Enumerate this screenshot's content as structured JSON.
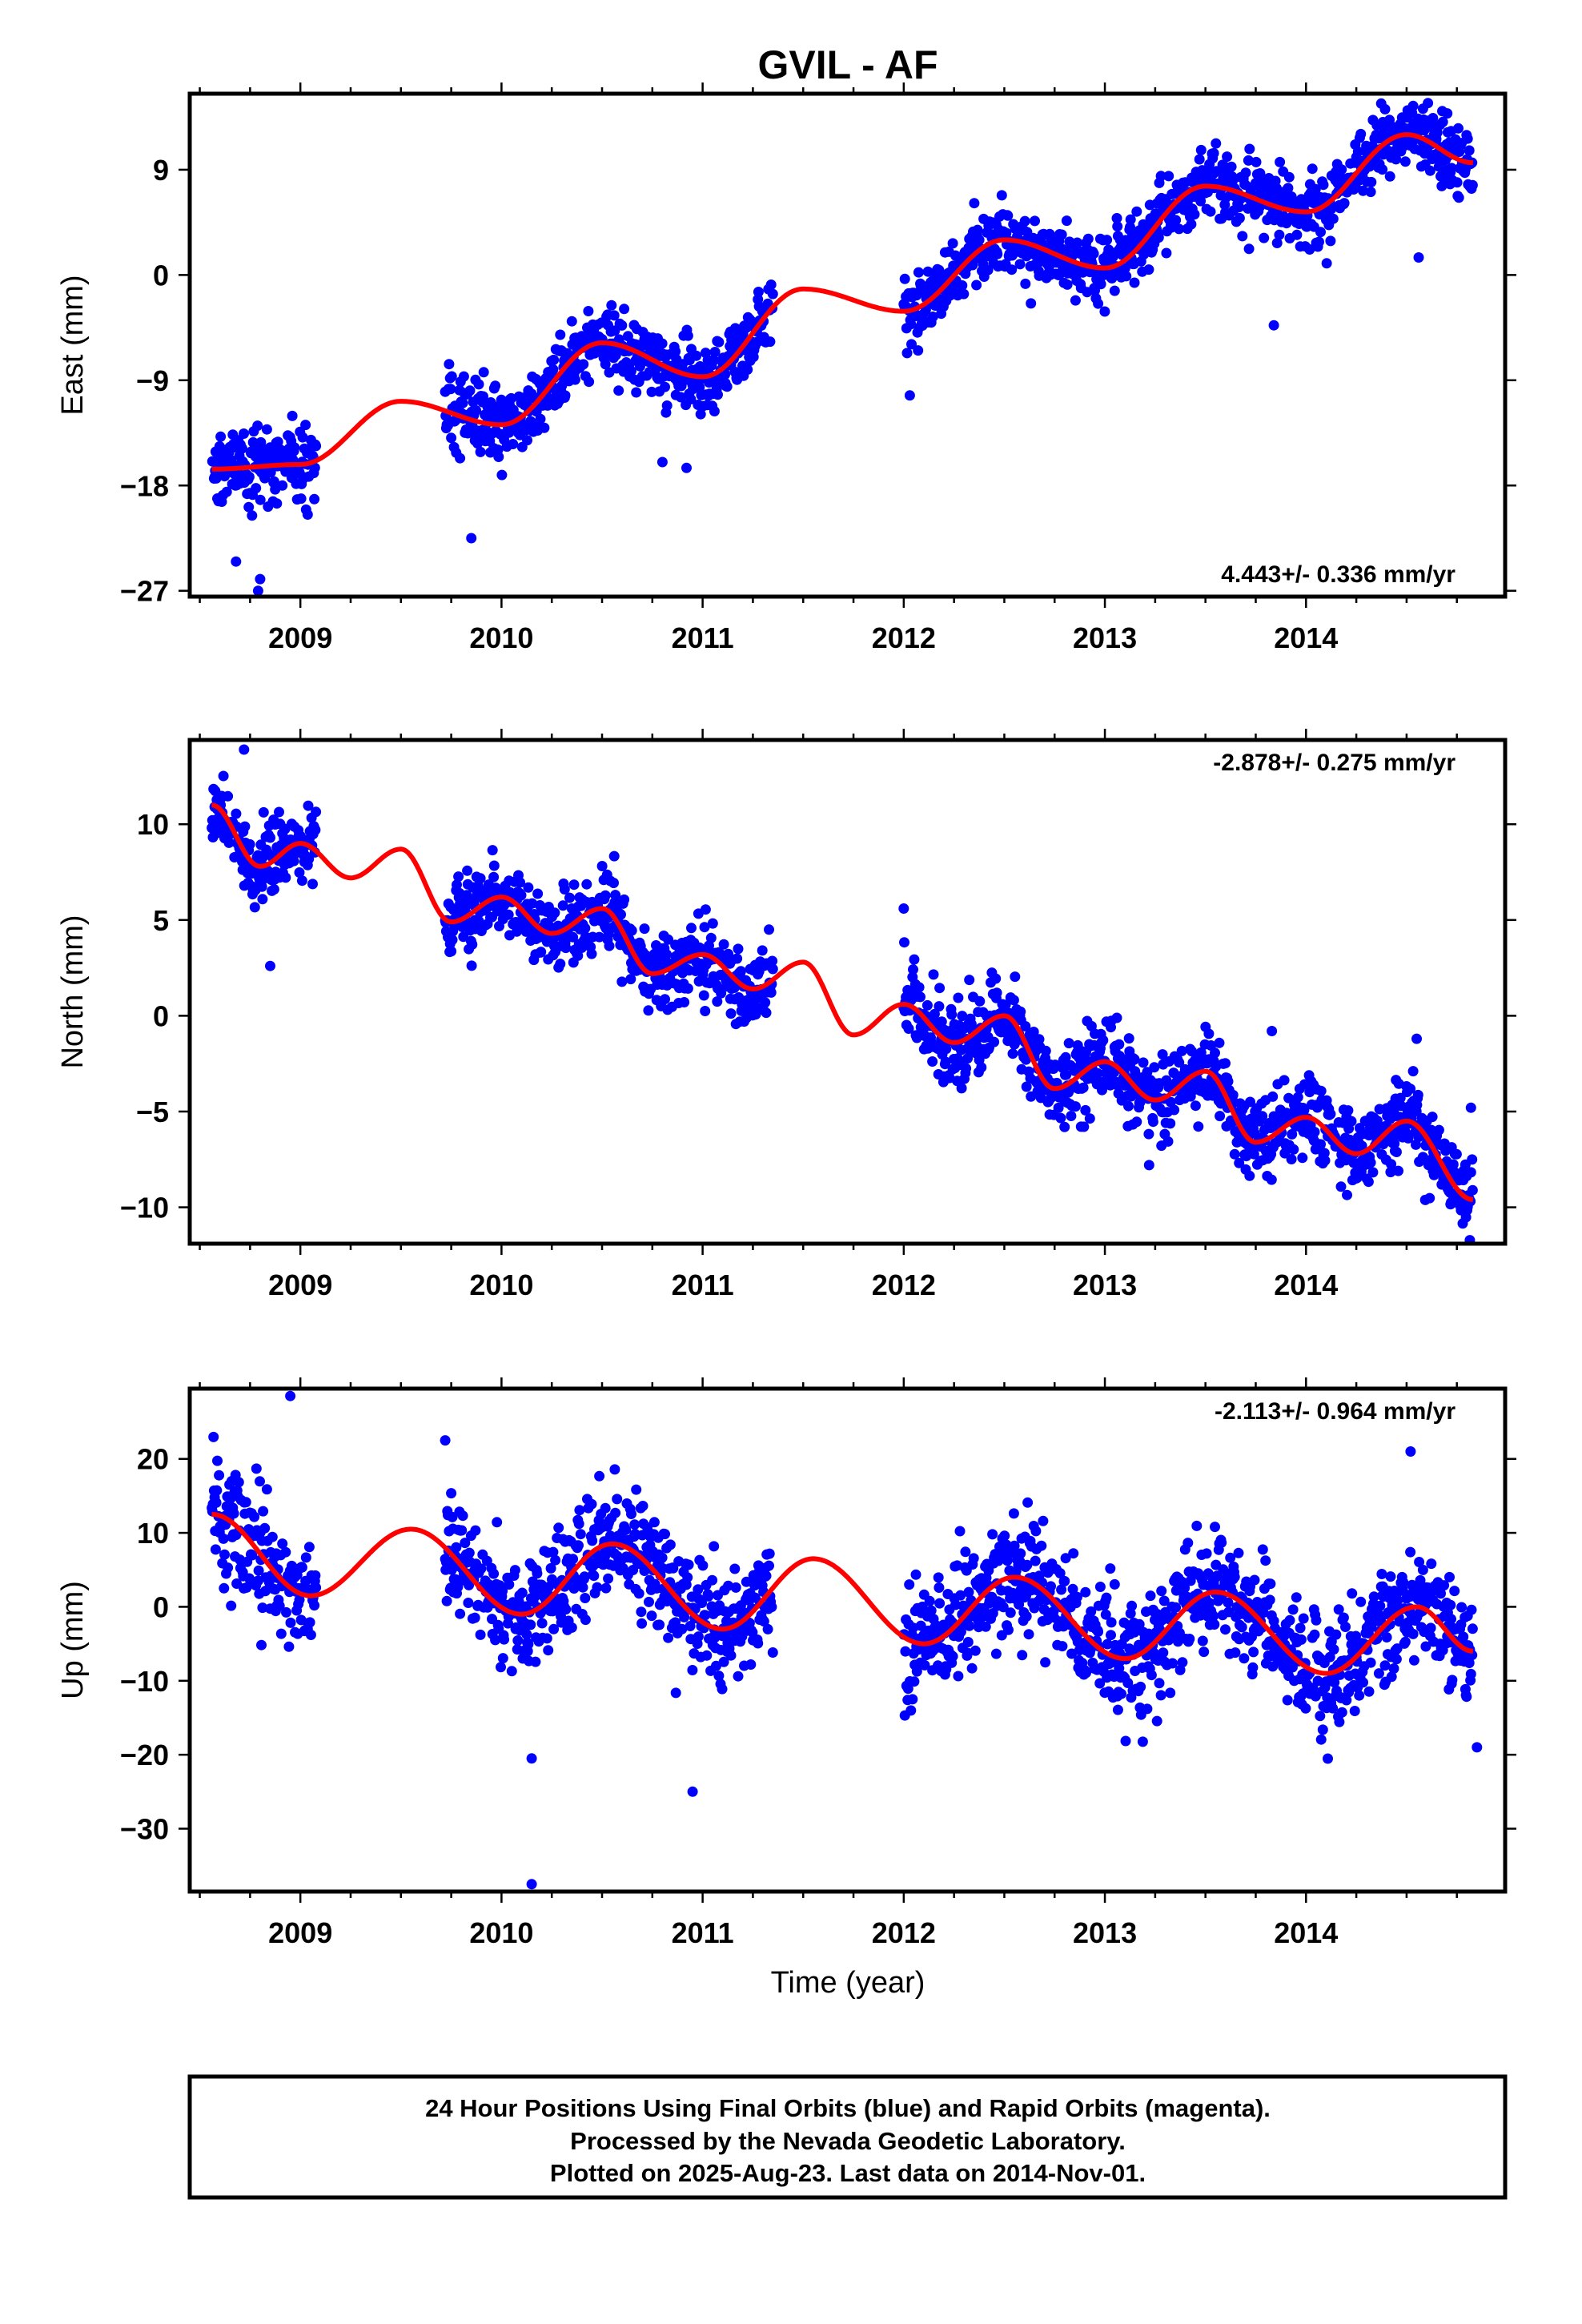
{
  "title": "GVIL - AF",
  "xlabel": "Time (year)",
  "footnote": {
    "line1": "24 Hour Positions Using Final Orbits (blue) and Rapid Orbits (magenta).",
    "line2": "Processed by the Nevada Geodetic Laboratory.",
    "line3": "Plotted on 2025-Aug-23. Last data on 2014-Nov-01."
  },
  "colors": {
    "points": "#0000ff",
    "model": "#ff0000",
    "frame": "#000000"
  },
  "chart_data": [
    {
      "type": "scatter",
      "panel": "east",
      "ylabel": "East (mm)",
      "rate_label": "4.443+/- 0.336 mm/yr",
      "xlim": [
        2008.45,
        2014.99
      ],
      "ylim": [
        -27.5,
        15.5
      ],
      "x_ticks": [
        2009,
        2010,
        2011,
        2012,
        2013,
        2014
      ],
      "x_tick_labels": [
        "2009",
        "2010",
        "2011",
        "2012",
        "2013",
        "2014"
      ],
      "y_ticks": [
        -27,
        -18,
        -9,
        0,
        9
      ],
      "y_tick_labels": [
        "−27",
        "−18",
        "−9",
        "0",
        "9"
      ],
      "grid": false,
      "data_segments": [
        [
          2008.56,
          2009.08
        ],
        [
          2009.72,
          2011.35
        ],
        [
          2012.0,
          2014.83
        ]
      ],
      "model": {
        "rate": 4.443,
        "rate_error": 0.336,
        "t0": 2008.56,
        "y0": -16.6,
        "annual_amp": 3.0,
        "annual_phase": 2.1,
        "offsets": [],
        "samples_x": [
          2008.56,
          2009.0,
          2009.5,
          2010.0,
          2010.5,
          2011.0,
          2011.5,
          2012.0,
          2012.5,
          2013.0,
          2013.5,
          2014.0,
          2014.5,
          2014.83
        ],
        "samples_y": [
          -16.6,
          -16.2,
          -10.8,
          -12.8,
          -5.8,
          -8.7,
          -1.2,
          -3.1,
          3.0,
          0.6,
          7.6,
          5.4,
          12.0,
          9.6
        ]
      },
      "scatter_sd": 1.5,
      "observations_count_approx": 1700,
      "outliers": [
        [
          2008.68,
          -24.5
        ],
        [
          2008.8,
          -26.0
        ],
        [
          2008.79,
          -27.0
        ],
        [
          2009.85,
          -22.5
        ],
        [
          2010.8,
          -16.0
        ],
        [
          2010.92,
          -16.5
        ],
        [
          2012.03,
          -10.3
        ],
        [
          2013.84,
          -4.3
        ],
        [
          2014.56,
          1.5
        ]
      ]
    },
    {
      "type": "scatter",
      "panel": "north",
      "ylabel": "North (mm)",
      "rate_label": "-2.878+/- 0.275 mm/yr",
      "xlim": [
        2008.45,
        2014.99
      ],
      "ylim": [
        -11.9,
        14.4
      ],
      "x_ticks": [
        2009,
        2010,
        2011,
        2012,
        2013,
        2014
      ],
      "x_tick_labels": [
        "2009",
        "2010",
        "2011",
        "2012",
        "2013",
        "2014"
      ],
      "y_ticks": [
        -10,
        -5,
        0,
        5,
        10
      ],
      "y_tick_labels": [
        "−10",
        "−5",
        "0",
        "5",
        "10"
      ],
      "grid": false,
      "data_segments": [
        [
          2008.56,
          2009.08
        ],
        [
          2009.72,
          2011.35
        ],
        [
          2012.0,
          2014.83
        ]
      ],
      "model": {
        "rate": -2.878,
        "rate_error": 0.275,
        "samples_x": [
          2008.56,
          2008.8,
          2009.0,
          2009.25,
          2009.5,
          2009.75,
          2010.0,
          2010.25,
          2010.5,
          2010.75,
          2011.0,
          2011.25,
          2011.5,
          2011.75,
          2012.0,
          2012.25,
          2012.5,
          2012.75,
          2013.0,
          2013.25,
          2013.5,
          2013.75,
          2014.0,
          2014.25,
          2014.5,
          2014.83
        ],
        "samples_y": [
          11.0,
          7.8,
          9.0,
          7.2,
          8.7,
          4.9,
          6.2,
          4.3,
          5.6,
          2.2,
          3.2,
          1.4,
          2.8,
          -1.0,
          0.6,
          -1.4,
          0.0,
          -3.8,
          -2.4,
          -4.4,
          -2.9,
          -6.6,
          -5.3,
          -7.2,
          -5.5,
          -9.6
        ]
      },
      "scatter_sd": 1.0,
      "observations_count_approx": 1700,
      "outliers": [
        [
          2008.72,
          13.9
        ],
        [
          2008.85,
          2.6
        ],
        [
          2012.0,
          5.6
        ],
        [
          2013.83,
          -0.8
        ],
        [
          2014.55,
          -1.2
        ],
        [
          2014.82,
          -4.8
        ],
        [
          2013.22,
          -7.8
        ]
      ]
    },
    {
      "type": "scatter",
      "panel": "up",
      "ylabel": "Up (mm)",
      "rate_label": "-2.113+/- 0.964 mm/yr",
      "xlim": [
        2008.45,
        2014.99
      ],
      "ylim": [
        -38.5,
        29.5
      ],
      "x_ticks": [
        2009,
        2010,
        2011,
        2012,
        2013,
        2014
      ],
      "x_tick_labels": [
        "2009",
        "2010",
        "2011",
        "2012",
        "2013",
        "2014"
      ],
      "y_ticks": [
        -30,
        -20,
        -10,
        0,
        10,
        20
      ],
      "y_tick_labels": [
        "−30",
        "−20",
        "−10",
        "0",
        "10",
        "20"
      ],
      "grid": false,
      "data_segments": [
        [
          2008.56,
          2009.08
        ],
        [
          2009.72,
          2011.35
        ],
        [
          2012.0,
          2014.83
        ]
      ],
      "model": {
        "rate": -2.113,
        "rate_error": 0.964,
        "samples_x": [
          2008.56,
          2009.05,
          2009.55,
          2010.1,
          2010.55,
          2011.1,
          2011.55,
          2012.1,
          2012.55,
          2013.1,
          2013.55,
          2014.1,
          2014.55,
          2014.83
        ],
        "samples_y": [
          12.5,
          1.5,
          10.5,
          -1.0,
          8.5,
          -3.0,
          6.5,
          -5.0,
          4.0,
          -7.0,
          2.0,
          -9.0,
          0.0,
          -6.0
        ]
      },
      "scatter_sd": 4.0,
      "observations_count_approx": 1700,
      "outliers": [
        [
          2008.95,
          28.5
        ],
        [
          2009.72,
          22.5
        ],
        [
          2010.15,
          -20.5
        ],
        [
          2010.15,
          -37.5
        ],
        [
          2010.95,
          -25.0
        ],
        [
          2014.52,
          21.0
        ],
        [
          2014.85,
          -19.0
        ]
      ]
    }
  ]
}
